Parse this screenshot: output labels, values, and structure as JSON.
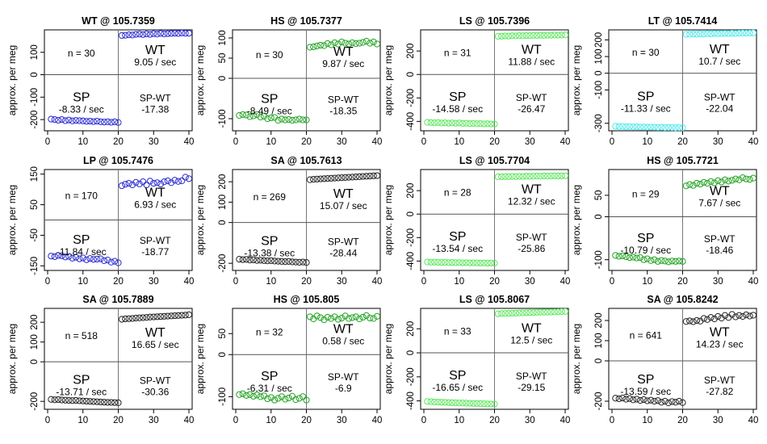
{
  "figure": {
    "ylabel": "approx. per meg",
    "point_color_legend": {
      "black": "#222222",
      "blue": "#2b2bd0",
      "green": "#22a322",
      "lime": "#5ce65c",
      "cyan": "#4fe8ea"
    }
  },
  "chart_data": [
    {
      "type": "scatter",
      "title": "WT @ 105.7359",
      "n_label": "n = 30",
      "color": "#2b2bd0",
      "ylim": [
        -250,
        200
      ],
      "yticks": [
        -200,
        -100,
        0,
        100
      ],
      "xlim": [
        0,
        40
      ],
      "xticks": [
        0,
        10,
        20,
        30,
        40
      ],
      "sp_level": -207,
      "wt_level": 180,
      "sp_label": "SP",
      "sp_rate": "-8.33 / sec",
      "wt_label": "WT",
      "wt_rate": "9.05 / sec",
      "diff_label": "SP-WT",
      "diff_value": "-17.38",
      "sp_values": [
        -198,
        -200,
        -203,
        -200,
        -205,
        -202,
        -206,
        -204,
        -205,
        -206,
        -208,
        -207,
        -209,
        -207,
        -210,
        -211,
        -210,
        -212,
        -210,
        -213
      ],
      "wt_values": [
        175,
        176,
        178,
        177,
        180,
        181,
        179,
        182,
        180,
        183,
        181,
        184,
        182,
        183,
        184,
        185,
        184,
        186,
        185,
        185
      ]
    },
    {
      "type": "scatter",
      "title": "HS @ 105.7377",
      "n_label": "n = 30",
      "color": "#22a322",
      "ylim": [
        -130,
        120
      ],
      "yticks": [
        -100,
        0,
        50,
        100
      ],
      "xlim": [
        0,
        40
      ],
      "xticks": [
        0,
        10,
        20,
        30,
        40
      ],
      "sp_level": -100,
      "wt_level": 85,
      "sp_label": "SP",
      "sp_rate": "-8.49 / sec",
      "wt_label": "WT",
      "wt_rate": "9.87 / sec",
      "diff_label": "SP-WT",
      "diff_value": "-18.35",
      "sp_values": [
        -92,
        -90,
        -91,
        -95,
        -93,
        -90,
        -96,
        -94,
        -100,
        -98,
        -97,
        -104,
        -101,
        -103,
        -102,
        -104,
        -103,
        -101,
        -103,
        -103
      ],
      "wt_values": [
        77,
        78,
        80,
        82,
        81,
        86,
        83,
        88,
        85,
        90,
        87,
        85,
        88,
        86,
        87,
        89,
        92,
        87,
        90,
        85
      ]
    },
    {
      "type": "scatter",
      "title": "LS @ 105.7396",
      "n_label": "n = 31",
      "color": "#5ce65c",
      "ylim": [
        -480,
        380
      ],
      "yticks": [
        -400,
        -200,
        0,
        200
      ],
      "xlim": [
        0,
        40
      ],
      "xticks": [
        0,
        10,
        20,
        30,
        40
      ],
      "sp_level": -410,
      "wt_level": 330,
      "sp_label": "SP",
      "sp_rate": "-14.58 / sec",
      "wt_label": "WT",
      "wt_rate": "11.88 / sec",
      "diff_label": "SP-WT",
      "diff_value": "-26.47",
      "sp_values": [
        -408,
        -410,
        -412,
        -410,
        -414,
        -412,
        -415,
        -413,
        -416,
        -414,
        -418,
        -416,
        -419,
        -417,
        -420,
        -419,
        -421,
        -420,
        -422,
        -423
      ],
      "wt_values": [
        325,
        326,
        328,
        327,
        330,
        329,
        331,
        330,
        332,
        331,
        333,
        332,
        334,
        333,
        335,
        334,
        336,
        335,
        336,
        337
      ]
    },
    {
      "type": "scatter",
      "title": "LT @ 105.7414",
      "n_label": "n = 30",
      "color": "#4fe8ea",
      "ylim": [
        -345,
        260
      ],
      "yticks": [
        -300,
        -100,
        0,
        100,
        200
      ],
      "xlim": [
        0,
        40
      ],
      "xticks": [
        0,
        10,
        20,
        30,
        40
      ],
      "sp_level": -320,
      "wt_level": 238,
      "sp_label": "SP",
      "sp_rate": "-11.33 / sec",
      "wt_label": "WT",
      "wt_rate": "10.7 / sec",
      "diff_label": "SP-WT",
      "diff_value": "-22.04",
      "sp_values": [
        -318,
        -320,
        -319,
        -321,
        -320,
        -322,
        -321,
        -323,
        -322,
        -324,
        -323,
        -324,
        -325,
        -324,
        -326,
        -325,
        -326,
        -327,
        -326,
        -327
      ],
      "wt_values": [
        233,
        234,
        235,
        234,
        236,
        235,
        237,
        236,
        238,
        237,
        238,
        239,
        238,
        240,
        239,
        240,
        241,
        240,
        241,
        242
      ]
    },
    {
      "type": "scatter",
      "title": "LP @ 105.7476",
      "n_label": "n = 170",
      "color": "#2b2bd0",
      "ylim": [
        -165,
        165
      ],
      "yticks": [
        -150,
        -50,
        50,
        150
      ],
      "xlim": [
        0,
        40
      ],
      "xticks": [
        0,
        10,
        20,
        30,
        40
      ],
      "sp_level": -120,
      "wt_level": 120,
      "sp_label": "SP",
      "sp_rate": "-11.84 / sec",
      "wt_label": "WT",
      "wt_rate": "6.93 / sec",
      "diff_label": "SP-WT",
      "diff_value": "-18.77",
      "sp_values": [
        -118,
        -120,
        -116,
        -117,
        -121,
        -119,
        -125,
        -122,
        -127,
        -124,
        -130,
        -126,
        -129,
        -128,
        -127,
        -133,
        -131,
        -138,
        -135,
        -140
      ],
      "wt_values": [
        112,
        117,
        120,
        115,
        123,
        118,
        125,
        115,
        127,
        120,
        122,
        118,
        125,
        128,
        122,
        130,
        126,
        128,
        140,
        135
      ]
    },
    {
      "type": "scatter",
      "title": "SA @ 105.7613",
      "n_label": "n = 269",
      "color": "#222222",
      "ylim": [
        -235,
        260
      ],
      "yticks": [
        -200,
        0,
        100,
        200
      ],
      "xlim": [
        0,
        40
      ],
      "xticks": [
        0,
        10,
        20,
        30,
        40
      ],
      "sp_level": -185,
      "wt_level": 225,
      "sp_label": "SP",
      "sp_rate": "-13.38 / sec",
      "wt_label": "WT",
      "wt_rate": "15.07 / sec",
      "diff_label": "SP-WT",
      "diff_value": "-28.44",
      "sp_values": [
        -180,
        -182,
        -181,
        -184,
        -183,
        -186,
        -185,
        -187,
        -188,
        -187,
        -189,
        -190,
        -191,
        -192,
        -191,
        -193,
        -194,
        -195,
        -194,
        -196
      ],
      "wt_values": [
        210,
        212,
        213,
        214,
        215,
        216,
        217,
        218,
        219,
        220,
        221,
        222,
        223,
        224,
        225,
        226,
        227,
        228,
        229,
        230
      ]
    },
    {
      "type": "scatter",
      "title": "LS @ 105.7704",
      "n_label": "n = 28",
      "color": "#5ce65c",
      "ylim": [
        -480,
        380
      ],
      "yticks": [
        -400,
        -200,
        0,
        200
      ],
      "xlim": [
        0,
        40
      ],
      "xticks": [
        0,
        10,
        20,
        30,
        40
      ],
      "sp_level": -410,
      "wt_level": 320,
      "sp_label": "SP",
      "sp_rate": "-13.54 / sec",
      "wt_label": "WT",
      "wt_rate": "12.32 / sec",
      "diff_label": "SP-WT",
      "diff_value": "-25.86",
      "sp_values": [
        -408,
        -410,
        -409,
        -411,
        -412,
        -411,
        -413,
        -412,
        -414,
        -413,
        -415,
        -414,
        -416,
        -415,
        -416,
        -417,
        -416,
        -418,
        -417,
        -418
      ],
      "wt_values": [
        318,
        319,
        320,
        319,
        321,
        320,
        322,
        321,
        323,
        322,
        323,
        324,
        323,
        325,
        324,
        325,
        326,
        325,
        326,
        327
      ]
    },
    {
      "type": "scatter",
      "title": "HS @ 105.7721",
      "n_label": "n = 29",
      "color": "#22a322",
      "ylim": [
        -125,
        110
      ],
      "yticks": [
        -100,
        0,
        50
      ],
      "xlim": [
        0,
        40
      ],
      "xticks": [
        0,
        10,
        20,
        30,
        40
      ],
      "sp_level": -95,
      "wt_level": 82,
      "sp_label": "SP",
      "sp_rate": "-10.79 / sec",
      "wt_label": "WT",
      "wt_rate": "7.67 / sec",
      "diff_label": "SP-WT",
      "diff_value": "-18.46",
      "sp_values": [
        -90,
        -92,
        -91,
        -93,
        -95,
        -94,
        -96,
        -95,
        -100,
        -98,
        -102,
        -100,
        -104,
        -102,
        -103,
        -105,
        -103,
        -104,
        -103,
        -104
      ],
      "wt_values": [
        72,
        75,
        73,
        78,
        76,
        80,
        78,
        82,
        79,
        84,
        81,
        86,
        83,
        85,
        88,
        86,
        91,
        88,
        87,
        90
      ]
    },
    {
      "type": "scatter",
      "title": "SA @ 105.7889",
      "n_label": "n = 518",
      "color": "#222222",
      "ylim": [
        -240,
        270
      ],
      "yticks": [
        -200,
        0,
        100,
        200
      ],
      "xlim": [
        0,
        40
      ],
      "xticks": [
        0,
        10,
        20,
        30,
        40
      ],
      "sp_level": -195,
      "wt_level": 230,
      "sp_label": "SP",
      "sp_rate": "-13.71 / sec",
      "wt_label": "WT",
      "wt_rate": "16.65 / sec",
      "diff_label": "SP-WT",
      "diff_value": "-30.36",
      "sp_values": [
        -190,
        -192,
        -191,
        -193,
        -194,
        -195,
        -196,
        -195,
        -197,
        -198,
        -199,
        -200,
        -201,
        -202,
        -203,
        -204,
        -205,
        -205,
        -206,
        -207
      ],
      "wt_values": [
        215,
        217,
        218,
        219,
        221,
        222,
        223,
        224,
        226,
        227,
        228,
        229,
        230,
        231,
        232,
        233,
        234,
        235,
        236,
        238
      ]
    },
    {
      "type": "scatter",
      "title": "HS @ 105.805",
      "n_label": "n = 32",
      "color": "#22a322",
      "ylim": [
        -130,
        110
      ],
      "yticks": [
        -100,
        0,
        50
      ],
      "xlim": [
        0,
        40
      ],
      "xticks": [
        0,
        10,
        20,
        30,
        40
      ],
      "sp_level": -100,
      "wt_level": 85,
      "sp_label": "SP",
      "sp_rate": "-6.31 / sec",
      "wt_label": "WT",
      "wt_rate": "0.58 / sec",
      "diff_label": "SP-WT",
      "diff_value": "-6.9",
      "sp_values": [
        -95,
        -93,
        -97,
        -95,
        -99,
        -96,
        -100,
        -98,
        -105,
        -102,
        -108,
        -104,
        -100,
        -106,
        -103,
        -99,
        -107,
        -104,
        -100,
        -108
      ],
      "wt_values": [
        90,
        85,
        92,
        88,
        83,
        89,
        86,
        90,
        84,
        87,
        92,
        86,
        88,
        90,
        85,
        89,
        93,
        87,
        86,
        91
      ]
    },
    {
      "type": "scatter",
      "title": "LS @ 105.8067",
      "n_label": "n = 33",
      "color": "#5ce65c",
      "ylim": [
        -470,
        370
      ],
      "yticks": [
        -400,
        -200,
        0,
        200
      ],
      "xlim": [
        0,
        40
      ],
      "xticks": [
        0,
        10,
        20,
        30,
        40
      ],
      "sp_level": -410,
      "wt_level": 335,
      "sp_label": "SP",
      "sp_rate": "-16.65 / sec",
      "wt_label": "WT",
      "wt_rate": "12.5 / sec",
      "diff_label": "SP-WT",
      "diff_value": "-29.15",
      "sp_values": [
        -405,
        -407,
        -409,
        -410,
        -411,
        -412,
        -414,
        -415,
        -416,
        -417,
        -418,
        -419,
        -420,
        -421,
        -422,
        -423,
        -424,
        -425,
        -426,
        -427
      ],
      "wt_values": [
        325,
        327,
        328,
        329,
        330,
        331,
        332,
        333,
        334,
        335,
        336,
        337,
        338,
        339,
        339,
        340,
        341,
        342,
        343,
        344
      ]
    },
    {
      "type": "scatter",
      "title": "SA @ 105.8242",
      "n_label": "n = 641",
      "color": "#222222",
      "ylim": [
        -240,
        260
      ],
      "yticks": [
        -200,
        0,
        100,
        200
      ],
      "xlim": [
        0,
        40
      ],
      "xticks": [
        0,
        10,
        20,
        30,
        40
      ],
      "sp_level": -190,
      "wt_level": 215,
      "sp_label": "SP",
      "sp_rate": "-13.59 / sec",
      "wt_label": "WT",
      "wt_rate": "14.23 / sec",
      "diff_label": "SP-WT",
      "diff_value": "-27.82",
      "sp_values": [
        -185,
        -188,
        -184,
        -190,
        -187,
        -193,
        -190,
        -196,
        -192,
        -198,
        -195,
        -200,
        -197,
        -205,
        -200,
        -208,
        -202,
        -205,
        -200,
        -207
      ],
      "wt_values": [
        195,
        198,
        194,
        200,
        197,
        210,
        205,
        215,
        208,
        220,
        212,
        225,
        215,
        230,
        218,
        225,
        220,
        228,
        222,
        226
      ]
    }
  ]
}
